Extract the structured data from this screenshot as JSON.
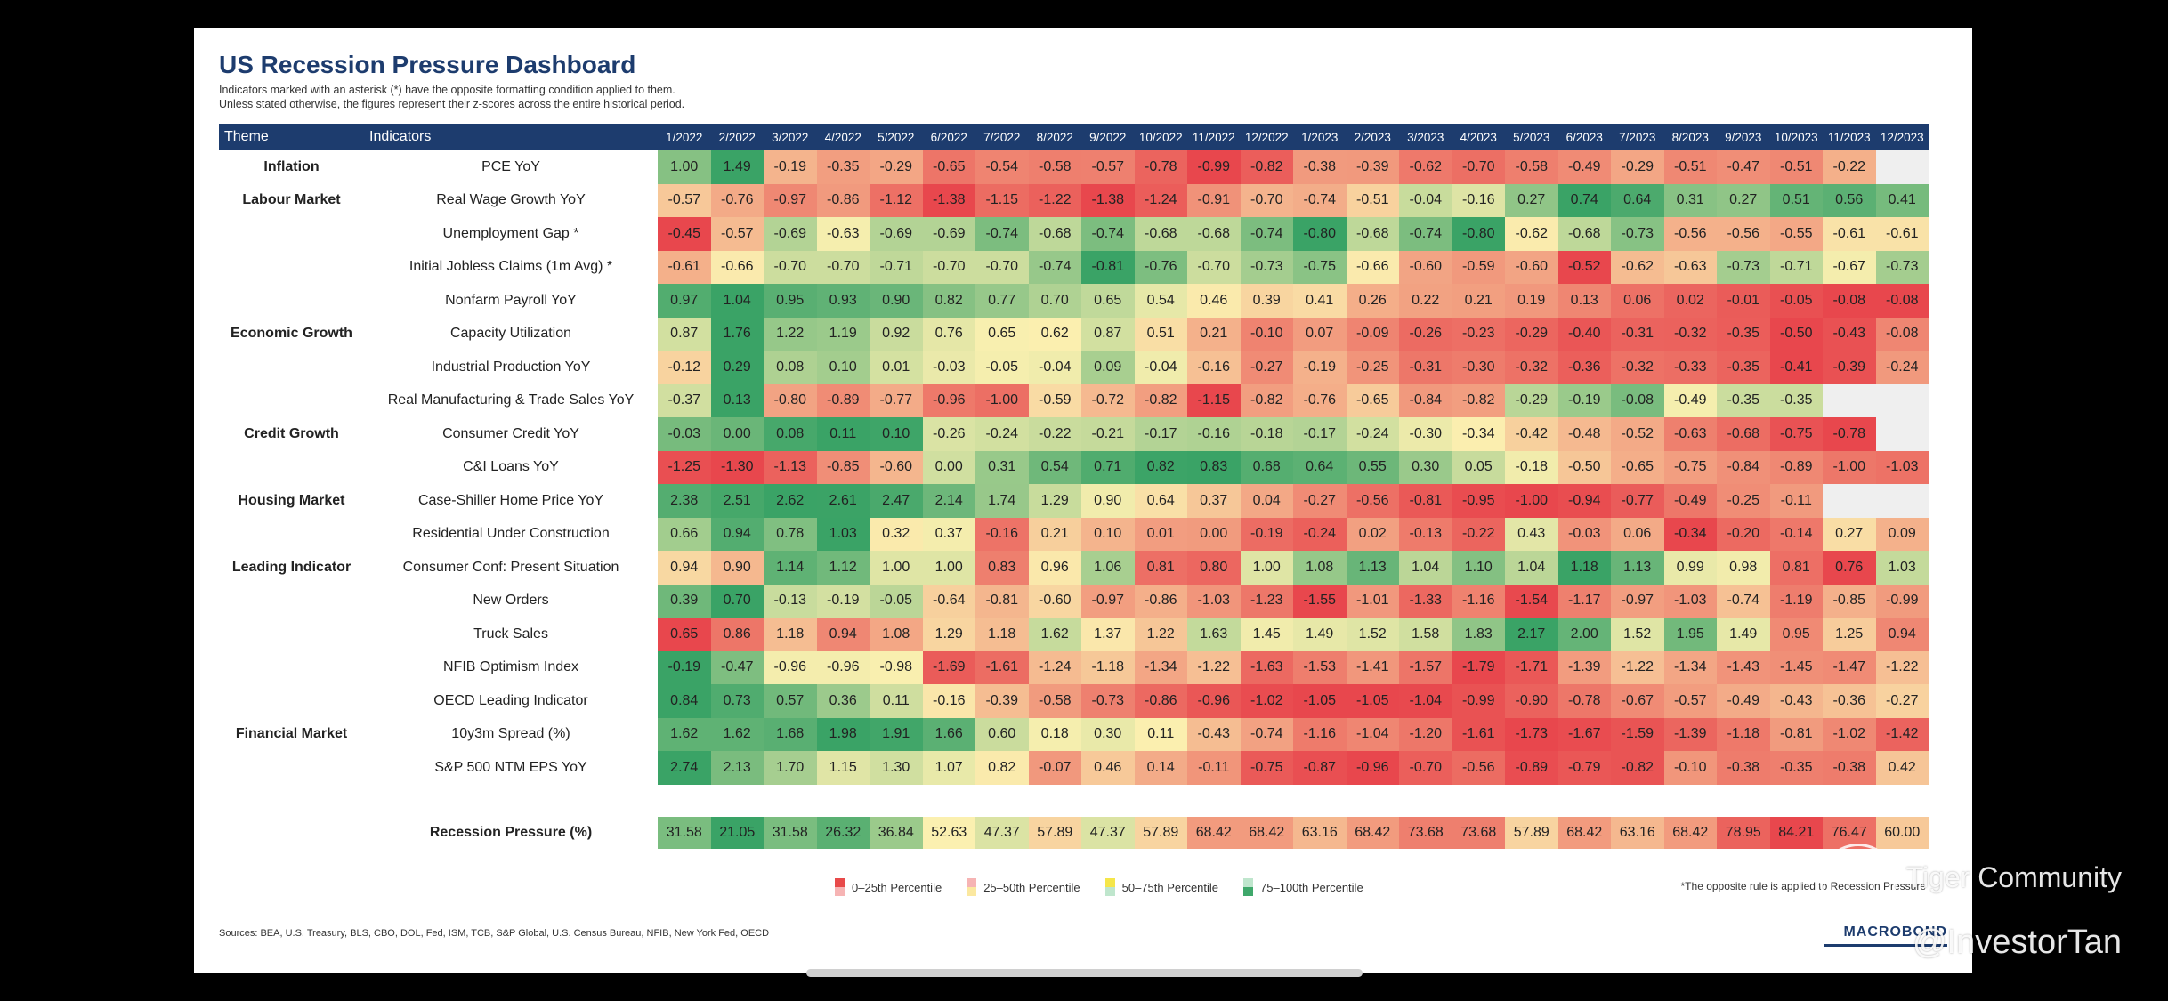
{
  "title": "US Recession Pressure Dashboard",
  "subtitle_lines": [
    "Indicators marked with an asterisk (*) have the opposite formatting condition applied to them.",
    "Unless stated otherwise, the figures represent their z-scores across the entire historical period."
  ],
  "headers": {
    "theme": "Theme",
    "indicators": "Indicators",
    "months": [
      "1/2022",
      "2/2022",
      "3/2022",
      "4/2022",
      "5/2022",
      "6/2022",
      "7/2022",
      "8/2022",
      "9/2022",
      "10/2022",
      "11/2022",
      "12/2022",
      "1/2023",
      "2/2023",
      "3/2023",
      "4/2023",
      "5/2023",
      "6/2023",
      "7/2023",
      "8/2023",
      "9/2023",
      "10/2023",
      "11/2023",
      "12/2023"
    ]
  },
  "rows": [
    {
      "theme": "Inflation",
      "indicator": "PCE YoY",
      "values": [
        "1.00",
        "1.49",
        "-0.19",
        "-0.35",
        "-0.29",
        "-0.65",
        "-0.54",
        "-0.58",
        "-0.57",
        "-0.78",
        "-0.99",
        "-0.82",
        "-0.38",
        "-0.39",
        "-0.62",
        "-0.70",
        "-0.58",
        "-0.49",
        "-0.29",
        "-0.51",
        "-0.47",
        "-0.51",
        "-0.22",
        ""
      ]
    },
    {
      "theme": "Labour Market",
      "indicator": "Real Wage Growth YoY",
      "values": [
        "-0.57",
        "-0.76",
        "-0.97",
        "-0.86",
        "-1.12",
        "-1.38",
        "-1.15",
        "-1.22",
        "-1.38",
        "-1.24",
        "-0.91",
        "-0.70",
        "-0.74",
        "-0.51",
        "-0.04",
        "-0.16",
        "0.27",
        "0.74",
        "0.64",
        "0.31",
        "0.27",
        "0.51",
        "0.56",
        "0.41"
      ]
    },
    {
      "theme": "",
      "indicator": "Unemployment Gap *",
      "values": [
        "-0.45",
        "-0.57",
        "-0.69",
        "-0.63",
        "-0.69",
        "-0.69",
        "-0.74",
        "-0.68",
        "-0.74",
        "-0.68",
        "-0.68",
        "-0.74",
        "-0.80",
        "-0.68",
        "-0.74",
        "-0.80",
        "-0.62",
        "-0.68",
        "-0.73",
        "-0.56",
        "-0.56",
        "-0.55",
        "-0.61",
        "-0.61"
      ]
    },
    {
      "theme": "",
      "indicator": "Initial Jobless Claims (1m Avg) *",
      "values": [
        "-0.61",
        "-0.66",
        "-0.70",
        "-0.70",
        "-0.71",
        "-0.70",
        "-0.70",
        "-0.74",
        "-0.81",
        "-0.76",
        "-0.70",
        "-0.73",
        "-0.75",
        "-0.66",
        "-0.60",
        "-0.59",
        "-0.60",
        "-0.52",
        "-0.62",
        "-0.63",
        "-0.73",
        "-0.71",
        "-0.67",
        "-0.73"
      ]
    },
    {
      "theme": "",
      "indicator": "Nonfarm Payroll YoY",
      "values": [
        "0.97",
        "1.04",
        "0.95",
        "0.93",
        "0.90",
        "0.82",
        "0.77",
        "0.70",
        "0.65",
        "0.54",
        "0.46",
        "0.39",
        "0.41",
        "0.26",
        "0.22",
        "0.21",
        "0.19",
        "0.13",
        "0.06",
        "0.02",
        "-0.01",
        "-0.05",
        "-0.08",
        "-0.08"
      ]
    },
    {
      "theme": "Economic Growth",
      "indicator": "Capacity Utilization",
      "values": [
        "0.87",
        "1.76",
        "1.22",
        "1.19",
        "0.92",
        "0.76",
        "0.65",
        "0.62",
        "0.87",
        "0.51",
        "0.21",
        "-0.10",
        "0.07",
        "-0.09",
        "-0.26",
        "-0.23",
        "-0.29",
        "-0.40",
        "-0.31",
        "-0.32",
        "-0.35",
        "-0.50",
        "-0.43",
        "-0.08"
      ]
    },
    {
      "theme": "",
      "indicator": "Industrial Production YoY",
      "values": [
        "-0.12",
        "0.29",
        "0.08",
        "0.10",
        "0.01",
        "-0.03",
        "-0.05",
        "-0.04",
        "0.09",
        "-0.04",
        "-0.16",
        "-0.27",
        "-0.19",
        "-0.25",
        "-0.31",
        "-0.30",
        "-0.32",
        "-0.36",
        "-0.32",
        "-0.33",
        "-0.35",
        "-0.41",
        "-0.39",
        "-0.24"
      ]
    },
    {
      "theme": "",
      "indicator": "Real Manufacturing & Trade Sales YoY",
      "values": [
        "-0.37",
        "0.13",
        "-0.80",
        "-0.89",
        "-0.77",
        "-0.96",
        "-1.00",
        "-0.59",
        "-0.72",
        "-0.82",
        "-1.15",
        "-0.82",
        "-0.76",
        "-0.65",
        "-0.84",
        "-0.82",
        "-0.29",
        "-0.19",
        "-0.08",
        "-0.49",
        "-0.35",
        "-0.35",
        "",
        ""
      ]
    },
    {
      "theme": "Credit Growth",
      "indicator": "Consumer Credit YoY",
      "values": [
        "-0.03",
        "0.00",
        "0.08",
        "0.11",
        "0.10",
        "-0.26",
        "-0.24",
        "-0.22",
        "-0.21",
        "-0.17",
        "-0.16",
        "-0.18",
        "-0.17",
        "-0.24",
        "-0.30",
        "-0.34",
        "-0.42",
        "-0.48",
        "-0.52",
        "-0.63",
        "-0.68",
        "-0.75",
        "-0.78",
        ""
      ]
    },
    {
      "theme": "",
      "indicator": "C&I Loans YoY",
      "values": [
        "-1.25",
        "-1.30",
        "-1.13",
        "-0.85",
        "-0.60",
        "0.00",
        "0.31",
        "0.54",
        "0.71",
        "0.82",
        "0.83",
        "0.68",
        "0.64",
        "0.55",
        "0.30",
        "0.05",
        "-0.18",
        "-0.50",
        "-0.65",
        "-0.75",
        "-0.84",
        "-0.89",
        "-1.00",
        "-1.03"
      ]
    },
    {
      "theme": "Housing Market",
      "indicator": "Case-Shiller Home Price YoY",
      "values": [
        "2.38",
        "2.51",
        "2.62",
        "2.61",
        "2.47",
        "2.14",
        "1.74",
        "1.29",
        "0.90",
        "0.64",
        "0.37",
        "0.04",
        "-0.27",
        "-0.56",
        "-0.81",
        "-0.95",
        "-1.00",
        "-0.94",
        "-0.77",
        "-0.49",
        "-0.25",
        "-0.11",
        "",
        ""
      ]
    },
    {
      "theme": "",
      "indicator": "Residential Under Construction",
      "values": [
        "0.66",
        "0.94",
        "0.78",
        "1.03",
        "0.32",
        "0.37",
        "-0.16",
        "0.21",
        "0.10",
        "0.01",
        "0.00",
        "-0.19",
        "-0.24",
        "0.02",
        "-0.13",
        "-0.22",
        "0.43",
        "-0.03",
        "0.06",
        "-0.34",
        "-0.20",
        "-0.14",
        "0.27",
        "0.09"
      ]
    },
    {
      "theme": "Leading Indicator",
      "indicator": "Consumer Conf: Present Situation",
      "values": [
        "0.94",
        "0.90",
        "1.14",
        "1.12",
        "1.00",
        "1.00",
        "0.83",
        "0.96",
        "1.06",
        "0.81",
        "0.80",
        "1.00",
        "1.08",
        "1.13",
        "1.04",
        "1.10",
        "1.04",
        "1.18",
        "1.13",
        "0.99",
        "0.98",
        "0.81",
        "0.76",
        "1.03"
      ]
    },
    {
      "theme": "",
      "indicator": "New Orders",
      "values": [
        "0.39",
        "0.70",
        "-0.13",
        "-0.19",
        "-0.05",
        "-0.64",
        "-0.81",
        "-0.60",
        "-0.97",
        "-0.86",
        "-1.03",
        "-1.23",
        "-1.55",
        "-1.01",
        "-1.33",
        "-1.16",
        "-1.54",
        "-1.17",
        "-0.97",
        "-1.03",
        "-0.74",
        "-1.19",
        "-0.85",
        "-0.99"
      ]
    },
    {
      "theme": "",
      "indicator": "Truck Sales",
      "values": [
        "0.65",
        "0.86",
        "1.18",
        "0.94",
        "1.08",
        "1.29",
        "1.18",
        "1.62",
        "1.37",
        "1.22",
        "1.63",
        "1.45",
        "1.49",
        "1.52",
        "1.58",
        "1.83",
        "2.17",
        "2.00",
        "1.52",
        "1.95",
        "1.49",
        "0.95",
        "1.25",
        "0.94"
      ]
    },
    {
      "theme": "",
      "indicator": "NFIB Optimism Index",
      "values": [
        "-0.19",
        "-0.47",
        "-0.96",
        "-0.96",
        "-0.98",
        "-1.69",
        "-1.61",
        "-1.24",
        "-1.18",
        "-1.34",
        "-1.22",
        "-1.63",
        "-1.53",
        "-1.41",
        "-1.57",
        "-1.79",
        "-1.71",
        "-1.39",
        "-1.22",
        "-1.34",
        "-1.43",
        "-1.45",
        "-1.47",
        "-1.22"
      ]
    },
    {
      "theme": "",
      "indicator": "OECD Leading Indicator",
      "values": [
        "0.84",
        "0.73",
        "0.57",
        "0.36",
        "0.11",
        "-0.16",
        "-0.39",
        "-0.58",
        "-0.73",
        "-0.86",
        "-0.96",
        "-1.02",
        "-1.05",
        "-1.05",
        "-1.04",
        "-0.99",
        "-0.90",
        "-0.78",
        "-0.67",
        "-0.57",
        "-0.49",
        "-0.43",
        "-0.36",
        "-0.27"
      ]
    },
    {
      "theme": "Financial Market",
      "indicator": "10y3m Spread (%)",
      "values": [
        "1.62",
        "1.62",
        "1.68",
        "1.98",
        "1.91",
        "1.66",
        "0.60",
        "0.18",
        "0.30",
        "0.11",
        "-0.43",
        "-0.74",
        "-1.16",
        "-1.04",
        "-1.20",
        "-1.61",
        "-1.73",
        "-1.67",
        "-1.59",
        "-1.39",
        "-1.18",
        "-0.81",
        "-1.02",
        "-1.42"
      ]
    },
    {
      "theme": "",
      "indicator": "S&P 500 NTM EPS YoY",
      "values": [
        "2.74",
        "2.13",
        "1.70",
        "1.15",
        "1.30",
        "1.07",
        "0.82",
        "-0.07",
        "0.46",
        "0.14",
        "-0.11",
        "-0.75",
        "-0.87",
        "-0.96",
        "-0.70",
        "-0.56",
        "-0.89",
        "-0.79",
        "-0.82",
        "-0.10",
        "-0.38",
        "-0.35",
        "-0.38",
        "0.42"
      ]
    }
  ],
  "recession": {
    "label": "Recession Pressure (%)",
    "values": [
      "31.58",
      "21.05",
      "31.58",
      "26.32",
      "36.84",
      "52.63",
      "47.37",
      "57.89",
      "47.37",
      "57.89",
      "68.42",
      "68.42",
      "63.16",
      "68.42",
      "73.68",
      "73.68",
      "57.89",
      "68.42",
      "63.16",
      "68.42",
      "78.95",
      "84.21",
      "76.47",
      "60.00"
    ]
  },
  "legend": [
    {
      "label": "0–25th Percentile",
      "top": "#e84a4a",
      "bottom": "#f6b4b4"
    },
    {
      "label": "25–50th Percentile",
      "top": "#f6b4b4",
      "bottom": "#fbe8a0"
    },
    {
      "label": "50–75th Percentile",
      "top": "#f5e64a",
      "bottom": "#bfe6cd"
    },
    {
      "label": "75–100th Percentile",
      "top": "#bfe6cd",
      "bottom": "#3fa86b"
    }
  ],
  "footnote": "*The opposite rule is applied to Recession Pressure",
  "sources": "Sources: BEA, U.S. Treasury, BLS, CBO, DOL, Fed, ISM, TCB, S&P Global, U.S. Census Bureau, NFIB, New York Fed, OECD",
  "logo": "MACROBOND",
  "watermark": "Tiger Community",
  "watermark_handle": "@InvestorTan",
  "colors": {
    "header_bg": "#1d3c6e",
    "low": "#e8474d",
    "mid": "#fbf0b0",
    "high": "#3aa366",
    "empty": "#efefef"
  }
}
